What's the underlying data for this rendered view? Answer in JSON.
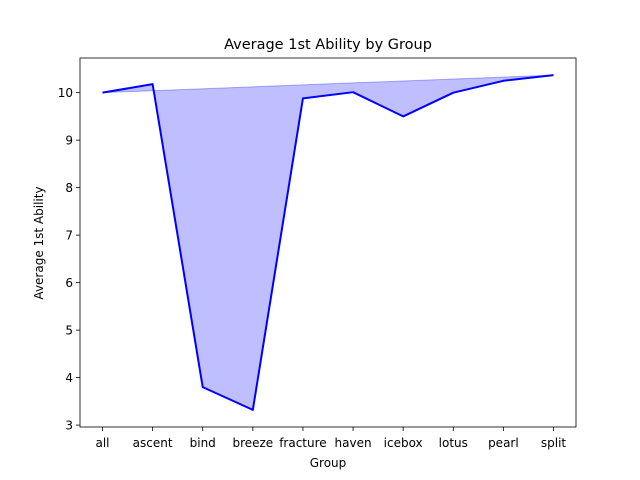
{
  "chart_data": {
    "type": "area",
    "title": "Average 1st Ability by Group",
    "xlabel": "Group",
    "ylabel": "Average 1st Ability",
    "categories": [
      "all",
      "ascent",
      "bind",
      "breeze",
      "fracture",
      "haven",
      "icebox",
      "lotus",
      "pearl",
      "split"
    ],
    "values": [
      10.0,
      10.18,
      3.8,
      3.32,
      9.88,
      10.01,
      9.5,
      10.0,
      10.25,
      10.37
    ],
    "ylim": [
      2.96,
      10.73
    ],
    "yticks": [
      3,
      4,
      5,
      6,
      7,
      8,
      9,
      10
    ],
    "grid": false,
    "line_color": "#0000ff",
    "fill_color": "#0000ff",
    "fill_note_baseline": "straight line from first to last point"
  }
}
